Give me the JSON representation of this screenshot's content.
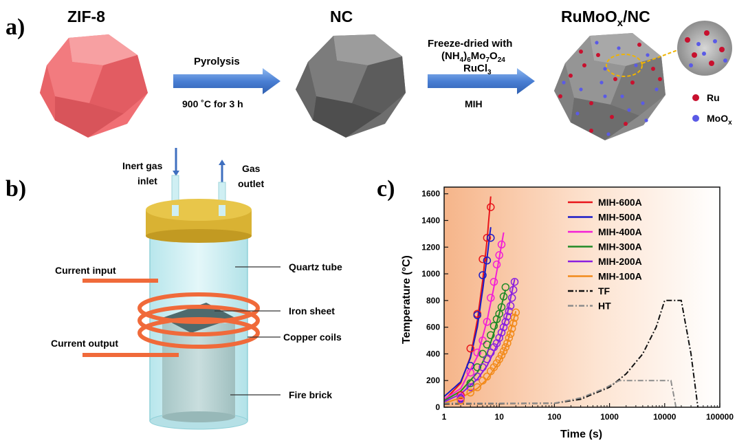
{
  "panel_a": {
    "letter": "a)",
    "zif8_title": "ZIF-8",
    "nc_title": "NC",
    "product_title": "RuMoO",
    "product_title_sub": "x",
    "product_title_tail": "/NC",
    "arrow1_top": "Pyrolysis",
    "arrow1_bottom": "900 ˚C for 3 h",
    "arrow2_line1": "Freeze-dried with",
    "arrow2_line2a": "(NH",
    "arrow2_line2b": "4",
    "arrow2_line2c": ")",
    "arrow2_line2d": "6",
    "arrow2_line2e": "Mo",
    "arrow2_line2f": "7",
    "arrow2_line2g": "O",
    "arrow2_line2h": "24",
    "arrow2_line3a": "RuCl",
    "arrow2_line3b": "3",
    "arrow2_bottom": "MIH",
    "legend_ru": "Ru",
    "legend_moox": "MoO",
    "legend_moox_sub": "x",
    "colors": {
      "zif8": "#f06f74",
      "nc": "#6e6e6e",
      "ru": "#c8102e",
      "moox": "#5a5ae6",
      "arrow": "#4a7fd4"
    }
  },
  "panel_b": {
    "letter": "b)",
    "inert_gas_inlet_1": "Inert gas",
    "inert_gas_inlet_2": "inlet",
    "gas_outlet_1": "Gas",
    "gas_outlet_2": "outlet",
    "current_input": "Current input",
    "current_output": "Current output",
    "quartz_tube": "Quartz tube",
    "iron_sheet": "Iron sheet",
    "copper_coils": "Copper coils",
    "fire_brick": "Fire brick",
    "colors": {
      "cap": "#d9b233",
      "tube": "#c9eef2",
      "coil": "#f06a3a"
    }
  },
  "panel_c": {
    "letter": "c)"
  },
  "chart_data": {
    "type": "line",
    "xlabel": "Time (s)",
    "ylabel": "Temperature (°C)",
    "x_scale": "log",
    "xlim": [
      1,
      100000
    ],
    "ylim": [
      0,
      1650
    ],
    "x_ticks": [
      "1",
      "10",
      "100",
      "1000",
      "10000",
      "100000"
    ],
    "y_ticks": [
      "0",
      "200",
      "400",
      "600",
      "800",
      "1000",
      "1200",
      "1400",
      "1600"
    ],
    "legend_position": "top-right",
    "series": [
      {
        "name": "MIH-600A",
        "color": "#e8141a",
        "dash": "solid",
        "fit_x": [
          1,
          2,
          3,
          4,
          5,
          6,
          7
        ],
        "fit_y": [
          50,
          180,
          380,
          650,
          950,
          1250,
          1580
        ],
        "markers_x": [
          2,
          3,
          4,
          5,
          6,
          7
        ],
        "markers_y": [
          90,
          440,
          700,
          1110,
          1270,
          1500
        ]
      },
      {
        "name": "MIH-500A",
        "color": "#1a1ac8",
        "dash": "solid",
        "fit_x": [
          1,
          2,
          3,
          4,
          5,
          6,
          7
        ],
        "fit_y": [
          80,
          190,
          370,
          600,
          880,
          1120,
          1350
        ],
        "markers_x": [
          2,
          3,
          4,
          5,
          6,
          7
        ],
        "markers_y": [
          70,
          310,
          690,
          990,
          1100,
          1270
        ]
      },
      {
        "name": "MIH-400A",
        "color": "#f21fd6",
        "dash": "solid",
        "fit_x": [
          1,
          2,
          4,
          6,
          8,
          10,
          12
        ],
        "fit_y": [
          60,
          140,
          380,
          650,
          900,
          1120,
          1310
        ],
        "markers_x": [
          2,
          3,
          4,
          5,
          6,
          7,
          8,
          9,
          10,
          11
        ],
        "markers_y": [
          75,
          260,
          410,
          500,
          640,
          820,
          940,
          1070,
          1140,
          1220
        ]
      },
      {
        "name": "MIH-300A",
        "color": "#1f8a26",
        "dash": "solid",
        "fit_x": [
          1,
          2,
          4,
          6,
          8,
          10,
          13
        ],
        "fit_y": [
          50,
          120,
          260,
          400,
          560,
          700,
          880
        ],
        "markers_x": [
          2,
          3,
          4,
          5,
          6,
          7,
          8,
          9,
          10,
          11,
          12,
          13
        ],
        "markers_y": [
          60,
          180,
          300,
          400,
          470,
          540,
          610,
          660,
          700,
          750,
          830,
          900
        ]
      },
      {
        "name": "MIH-200A",
        "color": "#8a1fe0",
        "dash": "solid",
        "fit_x": [
          1,
          2,
          4,
          6,
          10,
          14,
          19
        ],
        "fit_y": [
          40,
          100,
          210,
          310,
          500,
          700,
          960
        ],
        "markers_x": [
          2,
          3,
          4,
          5,
          6,
          7,
          8,
          9,
          10,
          11,
          12,
          13,
          14,
          15,
          16,
          17,
          18,
          19
        ],
        "markers_y": [
          60,
          150,
          230,
          300,
          360,
          410,
          450,
          480,
          520,
          560,
          600,
          640,
          680,
          720,
          760,
          820,
          880,
          940
        ]
      },
      {
        "name": "MIH-100A",
        "color": "#f28a1a",
        "dash": "solid",
        "fit_x": [
          1,
          2,
          4,
          6,
          10,
          14,
          20
        ],
        "fit_y": [
          30,
          70,
          140,
          210,
          340,
          480,
          720
        ],
        "markers_x": [
          2,
          3,
          4,
          5,
          6,
          7,
          8,
          9,
          10,
          11,
          12,
          13,
          14,
          15,
          16,
          17,
          18,
          19,
          20
        ],
        "markers_y": [
          50,
          110,
          150,
          200,
          230,
          270,
          300,
          330,
          360,
          390,
          420,
          450,
          480,
          520,
          550,
          590,
          630,
          670,
          710
        ]
      },
      {
        "name": "TF",
        "color": "#111111",
        "dash": "dashdot",
        "fit_x": [
          1,
          100,
          300,
          1000,
          2000,
          4000,
          7000,
          10000,
          20000,
          30000,
          40000
        ],
        "fit_y": [
          25,
          30,
          60,
          150,
          250,
          400,
          600,
          800,
          800,
          400,
          0
        ]
      },
      {
        "name": "HT",
        "color": "#8c8c8c",
        "dash": "dashdot",
        "fit_x": [
          1,
          100,
          300,
          800,
          1500,
          3000,
          10000,
          13000,
          16000
        ],
        "fit_y": [
          30,
          30,
          70,
          140,
          200,
          200,
          200,
          200,
          0
        ]
      }
    ]
  }
}
